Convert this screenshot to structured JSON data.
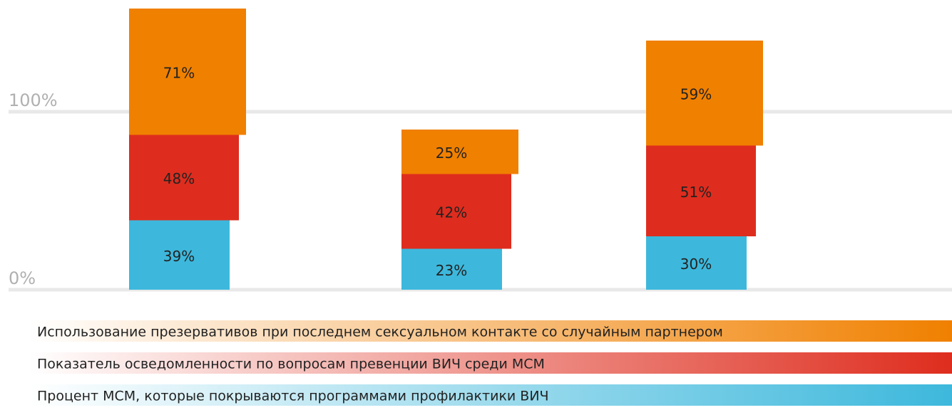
{
  "chart_data": {
    "type": "stacked_bar",
    "categories": [
      null,
      null,
      null
    ],
    "series": [
      {
        "name": "Процент МСМ, которые покрываются программами профилактики ВИЧ",
        "color": "#3db8dc",
        "values": [
          39,
          23,
          30
        ],
        "value_labels": [
          "39%",
          "23%",
          "30%"
        ]
      },
      {
        "name": "Показатель осведомленности по вопросам превенции ВИЧ среди МСМ",
        "color": "#de2d1e",
        "values": [
          48,
          42,
          51
        ],
        "value_labels": [
          "48%",
          "42%",
          "51%"
        ]
      },
      {
        "name": "Использование презервативов при последнем сексуальном контакте со случайным партнером",
        "color": "#f08000",
        "values": [
          71,
          25,
          59
        ],
        "value_labels": [
          "71%",
          "25%",
          "59%"
        ]
      }
    ],
    "ylim": [
      0,
      160
    ],
    "yticks": [
      {
        "value": 0,
        "label": "0%"
      },
      {
        "value": 100,
        "label": "100%"
      }
    ],
    "grid": true
  }
}
